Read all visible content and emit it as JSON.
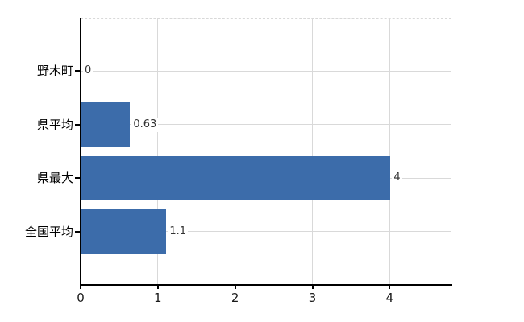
{
  "chart_data": {
    "type": "bar",
    "orientation": "horizontal",
    "title": "",
    "categories": [
      "野木町",
      "県平均",
      "県最大",
      "全国平均"
    ],
    "values": [
      0,
      0.63,
      4,
      1.1
    ],
    "value_labels": [
      "0",
      "0.63",
      "4",
      "1.1"
    ],
    "x_ticks": [
      0,
      1,
      2,
      3,
      4
    ],
    "x_tick_labels": [
      "0",
      "1",
      "2",
      "3",
      "4"
    ],
    "xlim": [
      0,
      4.8
    ],
    "grid": true,
    "legend": "none",
    "colors": {
      "bar": "#3c6caa",
      "grid": "#d9d9d9",
      "axis": "#000000",
      "category_text": "#000000",
      "tick_text": "#1a1a1a",
      "value_text": "#333333",
      "background": "#ffffff"
    }
  }
}
